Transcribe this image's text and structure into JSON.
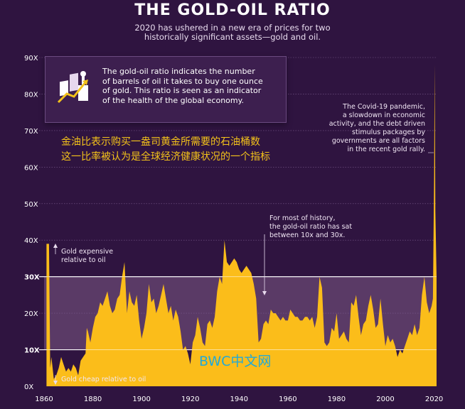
{
  "header": {
    "title": "THE GOLD-OIL RATIO",
    "subtitle_line1": "2020 has ushered in a new era of prices for two",
    "subtitle_line2": "historically significant assets—gold and oil."
  },
  "info_box": {
    "line1": "The gold-oil ratio indicates the number",
    "line2": "of barrels of oil it takes to buy one ounce",
    "line3": "of gold. This ratio is seen as an indicator",
    "line4": "of the health of the global economy.",
    "icon": "gold-bars-oil-chart-icon"
  },
  "chinese_note": {
    "line1": "金油比表示购买一盎司黄金所需要的石油桶数",
    "line2": "这一比率被认为是全球经济健康状况的一个指标"
  },
  "annotations": {
    "covid": [
      "The Covid-19 pandemic,",
      "a slowdown in economic",
      "activity, and the debt driven",
      "stimulus packages by",
      "governments are all factors",
      "in the recent gold rally."
    ],
    "history": [
      "For most of history,",
      "the gold-oil ratio has sat",
      "between 10x and 30x."
    ],
    "expensive": [
      "Gold expensive",
      "relative to oil"
    ],
    "cheap": "Gold cheap relative to oil"
  },
  "watermark": "BWC中文网",
  "colors": {
    "background": "#2f1440",
    "band": "#5a3a66",
    "area": "#fbbd1a",
    "text": "#ffffff",
    "accent": "#f3c21a",
    "watermark": "#21a9d8"
  },
  "chart_data": {
    "type": "area",
    "xlabel": "",
    "ylabel": "",
    "xlim": [
      1860,
      2021
    ],
    "ylim": [
      0,
      90
    ],
    "x_ticks": [
      1860,
      1880,
      1900,
      1920,
      1940,
      1960,
      1980,
      2000,
      2020
    ],
    "y_ticks": [
      "0X",
      "10X",
      "20X",
      "30X",
      "40X",
      "50X",
      "60X",
      "70X",
      "80X",
      "90X"
    ],
    "y_tick_values": [
      0,
      10,
      20,
      30,
      40,
      50,
      60,
      70,
      80,
      90
    ],
    "emphasized_ticks": [
      "10X",
      "30X"
    ],
    "band": [
      10,
      30
    ],
    "grid": true,
    "series": [
      {
        "values": [
          [
            1861,
            0
          ],
          [
            1861,
            39
          ],
          [
            1862,
            39
          ],
          [
            1862.5,
            5
          ],
          [
            1863,
            8
          ],
          [
            1864,
            2
          ],
          [
            1865,
            3
          ],
          [
            1866,
            5
          ],
          [
            1867,
            8
          ],
          [
            1868,
            6
          ],
          [
            1869,
            4
          ],
          [
            1870,
            5
          ],
          [
            1871,
            4
          ],
          [
            1872,
            6
          ],
          [
            1873,
            5
          ],
          [
            1874,
            3
          ],
          [
            1875,
            7
          ],
          [
            1876,
            8
          ],
          [
            1877,
            9
          ],
          [
            1877.5,
            16
          ],
          [
            1878,
            15
          ],
          [
            1879,
            12
          ],
          [
            1880,
            16
          ],
          [
            1881,
            19
          ],
          [
            1882,
            20
          ],
          [
            1883,
            23
          ],
          [
            1884,
            22
          ],
          [
            1885,
            24
          ],
          [
            1886,
            26
          ],
          [
            1887,
            22
          ],
          [
            1888,
            20
          ],
          [
            1889,
            21
          ],
          [
            1890,
            24
          ],
          [
            1891,
            25
          ],
          [
            1892,
            30
          ],
          [
            1893,
            34
          ],
          [
            1894,
            20
          ],
          [
            1895,
            26
          ],
          [
            1896,
            23
          ],
          [
            1897,
            22
          ],
          [
            1898,
            25
          ],
          [
            1899,
            18
          ],
          [
            1900,
            13
          ],
          [
            1901,
            16
          ],
          [
            1902,
            20
          ],
          [
            1903,
            28
          ],
          [
            1904,
            23
          ],
          [
            1905,
            24
          ],
          [
            1906,
            20
          ],
          [
            1907,
            22
          ],
          [
            1908,
            25
          ],
          [
            1909,
            28
          ],
          [
            1910,
            24
          ],
          [
            1911,
            20
          ],
          [
            1912,
            22
          ],
          [
            1913,
            18
          ],
          [
            1914,
            21
          ],
          [
            1915,
            19
          ],
          [
            1916,
            15
          ],
          [
            1917,
            10
          ],
          [
            1918,
            11
          ],
          [
            1919,
            9
          ],
          [
            1920,
            6
          ],
          [
            1921,
            12
          ],
          [
            1922,
            14
          ],
          [
            1923,
            19
          ],
          [
            1924,
            16
          ],
          [
            1925,
            12
          ],
          [
            1926,
            11
          ],
          [
            1927,
            17
          ],
          [
            1928,
            18
          ],
          [
            1929,
            16
          ],
          [
            1930,
            19
          ],
          [
            1931,
            26
          ],
          [
            1932,
            30
          ],
          [
            1933,
            28
          ],
          [
            1934,
            40
          ],
          [
            1935,
            34
          ],
          [
            1936,
            33
          ],
          [
            1937,
            34
          ],
          [
            1938,
            35
          ],
          [
            1939,
            34
          ],
          [
            1940,
            32
          ],
          [
            1941,
            31
          ],
          [
            1942,
            32
          ],
          [
            1943,
            33
          ],
          [
            1944,
            32
          ],
          [
            1945,
            31
          ],
          [
            1946,
            28
          ],
          [
            1947,
            24
          ],
          [
            1948,
            12
          ],
          [
            1949,
            13
          ],
          [
            1950,
            17
          ],
          [
            1951,
            18
          ],
          [
            1952,
            17
          ],
          [
            1953,
            21
          ],
          [
            1954,
            20
          ],
          [
            1955,
            20
          ],
          [
            1956,
            19
          ],
          [
            1957,
            18
          ],
          [
            1958,
            19
          ],
          [
            1959,
            18
          ],
          [
            1960,
            18
          ],
          [
            1961,
            21
          ],
          [
            1962,
            20
          ],
          [
            1963,
            19
          ],
          [
            1964,
            19
          ],
          [
            1965,
            18
          ],
          [
            1966,
            18
          ],
          [
            1967,
            19
          ],
          [
            1968,
            19
          ],
          [
            1969,
            18
          ],
          [
            1970,
            19
          ],
          [
            1971,
            16
          ],
          [
            1972,
            19
          ],
          [
            1973,
            30
          ],
          [
            1974,
            27
          ],
          [
            1975,
            12
          ],
          [
            1976,
            11
          ],
          [
            1977,
            12
          ],
          [
            1978,
            16
          ],
          [
            1979,
            15
          ],
          [
            1980,
            20
          ],
          [
            1981,
            13
          ],
          [
            1982,
            14
          ],
          [
            1983,
            15
          ],
          [
            1984,
            13
          ],
          [
            1985,
            12
          ],
          [
            1986,
            23
          ],
          [
            1987,
            22
          ],
          [
            1988,
            25
          ],
          [
            1989,
            19
          ],
          [
            1990,
            14
          ],
          [
            1991,
            17
          ],
          [
            1992,
            18
          ],
          [
            1993,
            22
          ],
          [
            1994,
            25
          ],
          [
            1995,
            21
          ],
          [
            1996,
            16
          ],
          [
            1997,
            17
          ],
          [
            1998,
            24
          ],
          [
            1999,
            17
          ],
          [
            2000,
            11
          ],
          [
            2001,
            14
          ],
          [
            2002,
            12
          ],
          [
            2003,
            13
          ],
          [
            2004,
            11
          ],
          [
            2005,
            8
          ],
          [
            2006,
            10
          ],
          [
            2007,
            9
          ],
          [
            2008,
            11
          ],
          [
            2009,
            13
          ],
          [
            2010,
            15
          ],
          [
            2011,
            14
          ],
          [
            2012,
            17
          ],
          [
            2013,
            14
          ],
          [
            2014,
            16
          ],
          [
            2015,
            25
          ],
          [
            2016,
            30
          ],
          [
            2017,
            23
          ],
          [
            2018,
            20
          ],
          [
            2019,
            22
          ],
          [
            2019.5,
            24
          ],
          [
            2020,
            58
          ],
          [
            2020.2,
            88
          ],
          [
            2020.5,
            48
          ],
          [
            2021,
            30
          ],
          [
            2021,
            0
          ]
        ]
      }
    ]
  }
}
